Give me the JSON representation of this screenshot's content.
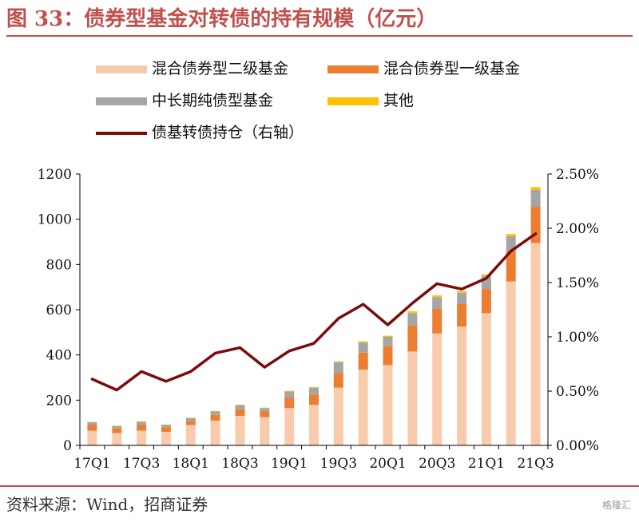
{
  "title": "图 33：债券型基金对转债的持有规模（亿元）",
  "source": "资料来源：Wind，招商证券",
  "watermark": "格隆汇",
  "legend": {
    "mixed_bond_2": "混合债券型二级基金",
    "mixed_bond_1": "混合债券型一级基金",
    "mid_long_pure": "中长期纯债型基金",
    "other": "其他",
    "ratio": "债基转债持仓（右轴）"
  },
  "chart_data": {
    "type": "bar",
    "stacked": true,
    "title": "图 33：债券型基金对转债的持有规模（亿元）",
    "categories": [
      "17Q1",
      "17Q2",
      "17Q3",
      "17Q4",
      "18Q1",
      "18Q2",
      "18Q3",
      "18Q4",
      "19Q1",
      "19Q2",
      "19Q3",
      "19Q4",
      "20Q1",
      "20Q2",
      "20Q3",
      "20Q4",
      "21Q1",
      "21Q2",
      "21Q3"
    ],
    "x_tick_labels": [
      "17Q1",
      "17Q3",
      "18Q1",
      "18Q3",
      "19Q1",
      "19Q3",
      "20Q1",
      "20Q3",
      "21Q1",
      "21Q3"
    ],
    "ylim_left": [
      0,
      1200
    ],
    "y_ticks_left": [
      "0",
      "200",
      "400",
      "600",
      "800",
      "1000",
      "1200"
    ],
    "ylim_right": [
      0,
      2.5
    ],
    "y_ticks_right": [
      "0.00%",
      "0.50%",
      "1.00%",
      "1.50%",
      "2.00%",
      "2.50%"
    ],
    "colors": {
      "mixed_bond_2": "#f8cbad",
      "mixed_bond_1": "#ed7d31",
      "mid_long_pure": "#a5a5a5",
      "other": "#ffc000",
      "ratio": "#7b0c0c"
    },
    "series": [
      {
        "key": "mixed_bond_2",
        "name": "混合债券型二级基金",
        "axis": "left",
        "values": [
          65,
          55,
          65,
          60,
          90,
          110,
          130,
          125,
          165,
          180,
          255,
          335,
          355,
          415,
          495,
          525,
          585,
          725,
          895
        ]
      },
      {
        "key": "mixed_bond_1",
        "name": "混合债券型一级基金",
        "axis": "left",
        "values": [
          25,
          20,
          25,
          20,
          18,
          25,
          30,
          25,
          45,
          45,
          65,
          75,
          85,
          115,
          110,
          100,
          105,
          135,
          160
        ]
      },
      {
        "key": "mid_long_pure",
        "name": "中长期纯债型基金",
        "axis": "left",
        "values": [
          12,
          10,
          14,
          10,
          12,
          15,
          18,
          15,
          28,
          30,
          48,
          45,
          40,
          55,
          50,
          50,
          58,
          65,
          75
        ]
      },
      {
        "key": "other",
        "name": "其他",
        "axis": "left",
        "values": [
          2,
          2,
          2,
          2,
          2,
          2,
          2,
          2,
          3,
          3,
          4,
          5,
          5,
          8,
          8,
          8,
          8,
          10,
          12
        ]
      },
      {
        "key": "ratio",
        "name": "债基转债持仓（右轴）",
        "type": "line",
        "axis": "right",
        "values": [
          0.61,
          0.51,
          0.68,
          0.59,
          0.68,
          0.85,
          0.9,
          0.72,
          0.87,
          0.94,
          1.17,
          1.3,
          1.11,
          1.31,
          1.49,
          1.44,
          1.54,
          1.79,
          1.95
        ]
      }
    ]
  }
}
